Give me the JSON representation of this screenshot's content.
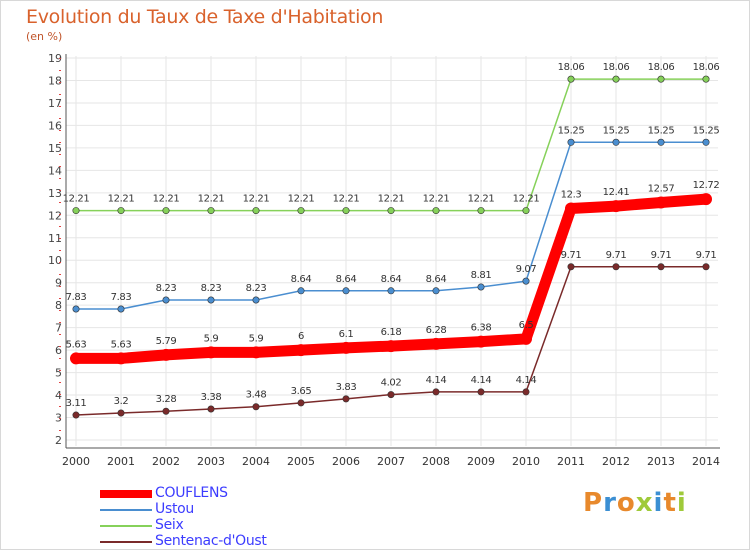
{
  "title": "Evolution du Taux de Taxe d'Habitation",
  "unit_label": "(en %)",
  "logo": {
    "text": "Proxiti",
    "colors": [
      "#e8892c",
      "#3b8fd3",
      "#e8892c",
      "#9fca3a",
      "#3b8fd3",
      "#e8892c",
      "#9fca3a"
    ]
  },
  "chart_data": {
    "type": "line",
    "title": "Evolution du Taux de Taxe d'Habitation",
    "ylabel": "(en %)",
    "xlabel": "",
    "x": [
      "2000",
      "2001",
      "2002",
      "2003",
      "2004",
      "2005",
      "2006",
      "2007",
      "2008",
      "2009",
      "2010",
      "2011",
      "2012",
      "2013",
      "2014"
    ],
    "ylim": [
      2,
      19
    ],
    "yticks": [
      "2",
      "3",
      "4",
      "5",
      "6",
      "7",
      "8",
      "9",
      "10",
      "11",
      "12",
      "13",
      "14",
      "15",
      "16",
      "17",
      "18",
      "19"
    ],
    "grid": true,
    "legend_position": "bottom-left",
    "series": [
      {
        "name": "COUFLENS",
        "color": "#ff0000",
        "emphasis": true,
        "values": [
          5.63,
          5.63,
          5.79,
          5.9,
          5.9,
          6,
          6.1,
          6.18,
          6.28,
          6.38,
          6.5,
          12.3,
          12.41,
          12.57,
          12.72
        ],
        "labels": [
          "5.63",
          "5.63",
          "5.79",
          "5.9",
          "5.9",
          "6",
          "6.1",
          "6.18",
          "6.28",
          "6.38",
          "6.5",
          "12.3",
          "12.41",
          "12.57",
          "12.72"
        ]
      },
      {
        "name": "Ustou",
        "color": "#4a8ed0",
        "values": [
          7.83,
          7.83,
          8.23,
          8.23,
          8.23,
          8.64,
          8.64,
          8.64,
          8.64,
          8.81,
          9.07,
          15.25,
          15.25,
          15.25,
          15.25
        ],
        "labels": [
          "7.83",
          "7.83",
          "8.23",
          "8.23",
          "8.23",
          "8.64",
          "8.64",
          "8.64",
          "8.64",
          "8.81",
          "9.07",
          "15.25",
          "15.25",
          "15.25",
          "15.25"
        ]
      },
      {
        "name": "Seix",
        "color": "#86d15a",
        "values": [
          12.21,
          12.21,
          12.21,
          12.21,
          12.21,
          12.21,
          12.21,
          12.21,
          12.21,
          12.21,
          12.21,
          18.06,
          18.06,
          18.06,
          18.06
        ],
        "labels": [
          "12.21",
          "12.21",
          "12.21",
          "12.21",
          "12.21",
          "12.21",
          "12.21",
          "12.21",
          "12.21",
          "12.21",
          "12.21",
          "18.06",
          "18.06",
          "18.06",
          "18.06"
        ]
      },
      {
        "name": "Sentenac-d'Oust",
        "color": "#7a2a2a",
        "values": [
          3.11,
          3.2,
          3.28,
          3.38,
          3.48,
          3.65,
          3.83,
          4.02,
          4.14,
          4.14,
          4.14,
          9.71,
          9.71,
          9.71,
          9.71
        ],
        "labels": [
          "3.11",
          "3.2",
          "3.28",
          "3.38",
          "3.48",
          "3.65",
          "3.83",
          "4.02",
          "4.14",
          "4.14",
          "4.14",
          "9.71",
          "9.71",
          "9.71",
          "9.71"
        ]
      }
    ]
  }
}
